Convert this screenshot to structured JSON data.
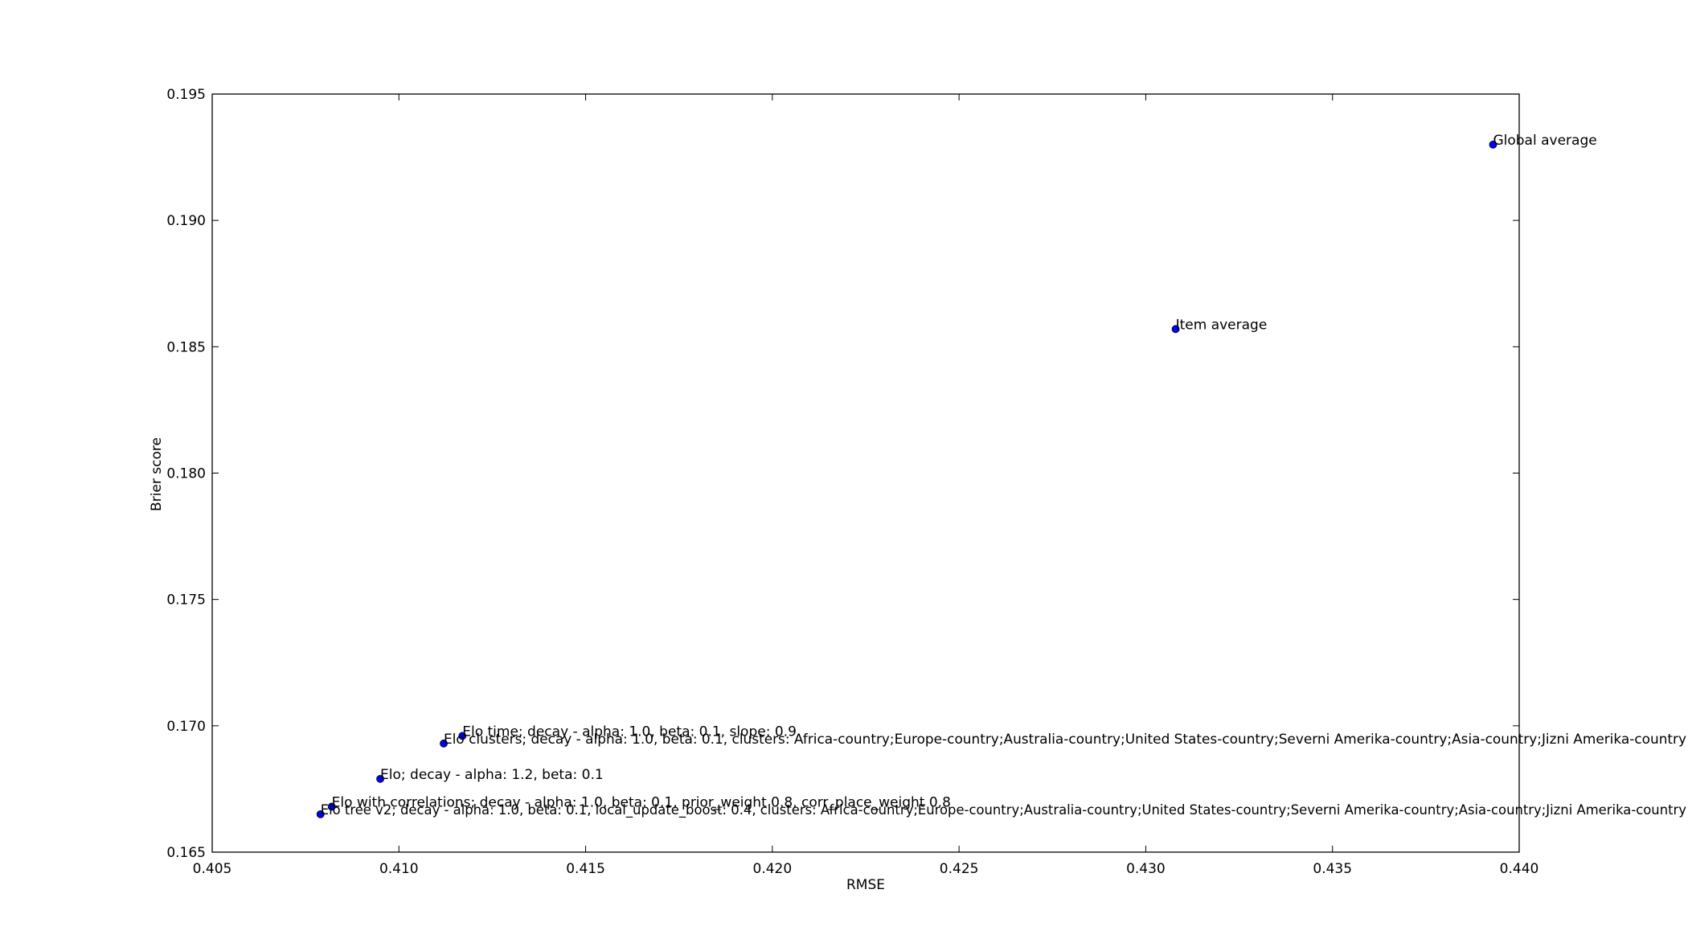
{
  "chart_data": {
    "type": "scatter",
    "title": "",
    "xlabel": "RMSE",
    "ylabel": "Brier score",
    "xlim": [
      0.405,
      0.44
    ],
    "ylim": [
      0.165,
      0.195
    ],
    "xticks": [
      "0.405",
      "0.410",
      "0.415",
      "0.420",
      "0.425",
      "0.430",
      "0.435",
      "0.440"
    ],
    "yticks": [
      "0.165",
      "0.170",
      "0.175",
      "0.180",
      "0.185",
      "0.190",
      "0.195"
    ],
    "grid": false,
    "marker_color": "#0000ff",
    "points": [
      {
        "x": 0.4393,
        "y": 0.193,
        "label": "Global average"
      },
      {
        "x": 0.4308,
        "y": 0.1857,
        "label": "Item average"
      },
      {
        "x": 0.4117,
        "y": 0.1696,
        "label": "Elo time; decay - alpha: 1.0, beta: 0.1, slope: 0.9"
      },
      {
        "x": 0.4112,
        "y": 0.1693,
        "label": "Elo clusters; decay - alpha: 1.0, beta: 0.1, clusters: Africa-country;Europe-country;Australia-country;United States-country;Severni Amerika-country;Asia-country;Jizni Amerika-country"
      },
      {
        "x": 0.4095,
        "y": 0.1679,
        "label": "Elo; decay - alpha: 1.2, beta: 0.1"
      },
      {
        "x": 0.4082,
        "y": 0.1668,
        "label": "Elo with correlations; decay - alpha: 1.0, beta: 0.1, prior_weight 0.8, corr_place_weight 0.8"
      },
      {
        "x": 0.4079,
        "y": 0.1665,
        "label": "Elo tree v2; decay - alpha: 1.0, beta: 0.1, local_update_boost: 0.4, clusters: Africa-country;Europe-country;Australia-country;United States-country;Severni Amerika-country;Asia-country;Jizni Amerika-country"
      }
    ]
  }
}
